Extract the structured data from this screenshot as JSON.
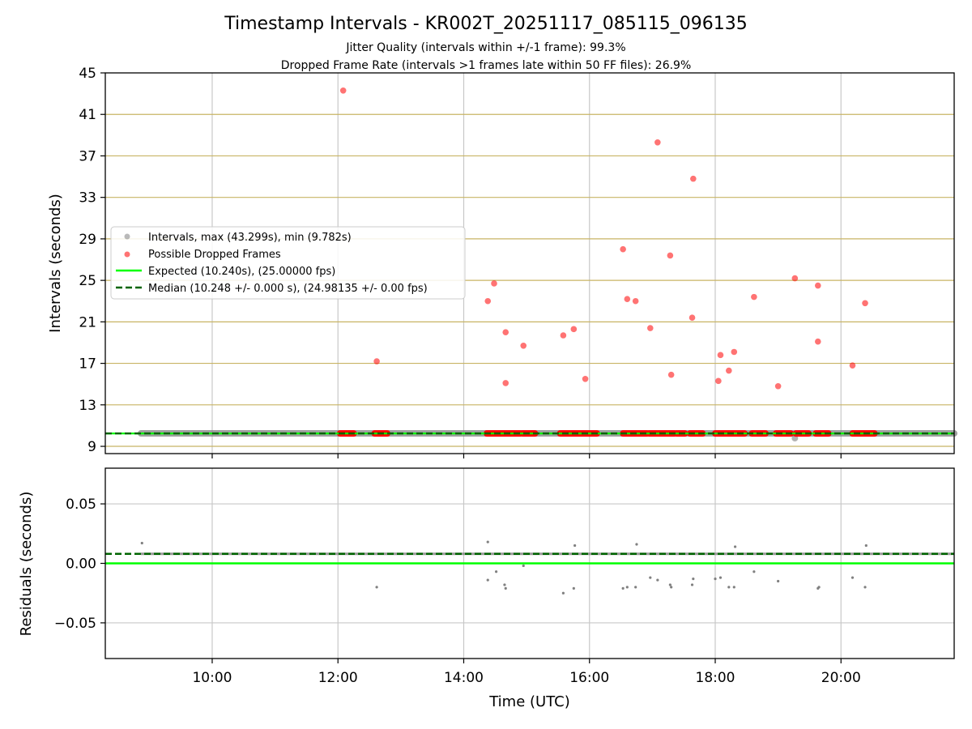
{
  "title": "Timestamp Intervals - KR002T_20251117_085115_096135",
  "subtitle1": "Jitter Quality (intervals within +/-1 frame): 99.3%",
  "subtitle2": "Dropped Frame Rate (intervals >1 frames late within 50 FF files): 26.9%",
  "colors": {
    "intervals": "#808080",
    "dropped": "#ff0000",
    "expected": "#00ff00",
    "median": "#006400",
    "hgrid": "#c8b464",
    "vgrid": "#c8c8c8"
  },
  "chart_data": [
    {
      "type": "scatter",
      "ylabel": "Intervals (seconds)",
      "xlim": [
        "08:18",
        "21:48"
      ],
      "ylim": [
        8.3,
        45
      ],
      "yticks": [
        9,
        13,
        17,
        21,
        25,
        29,
        33,
        37,
        41,
        45
      ],
      "grid": true,
      "legend_position": "center-left",
      "legend": [
        "Intervals, max (43.299s), min (9.782s)",
        "Possible Dropped Frames",
        "Expected (10.240s), (25.00000 fps)",
        "Median (10.248 +/- 0.000 s), (24.98135 +/- 0.00 fps)"
      ],
      "expected_value": 10.24,
      "median_value": 10.248,
      "intervals_range": {
        "from": "08:52",
        "to": "21:48",
        "value": 10.248,
        "min_point": {
          "x": "19:16",
          "y": 9.782
        }
      },
      "dropped_clusters": [
        {
          "from": "12:02",
          "to": "12:15",
          "y": 10.24
        },
        {
          "from": "12:35",
          "to": "12:47",
          "y": 10.24
        },
        {
          "from": "14:22",
          "to": "14:54",
          "y": 10.24
        },
        {
          "from": "14:56",
          "to": "15:08",
          "y": 10.24
        },
        {
          "from": "15:32",
          "to": "16:07",
          "y": 10.24
        },
        {
          "from": "16:32",
          "to": "16:55",
          "y": 10.24
        },
        {
          "from": "16:57",
          "to": "17:21",
          "y": 10.24
        },
        {
          "from": "17:23",
          "to": "17:31",
          "y": 10.24
        },
        {
          "from": "17:36",
          "to": "17:48",
          "y": 10.24
        },
        {
          "from": "18:00",
          "to": "18:28",
          "y": 10.24
        },
        {
          "from": "18:35",
          "to": "18:48",
          "y": 10.24
        },
        {
          "from": "18:58",
          "to": "19:12",
          "y": 10.24
        },
        {
          "from": "19:17",
          "to": "19:29",
          "y": 10.24
        },
        {
          "from": "19:36",
          "to": "19:48",
          "y": 10.24
        },
        {
          "from": "20:11",
          "to": "20:32",
          "y": 10.24
        }
      ],
      "dropped_points": [
        {
          "x": "12:05",
          "y": 43.3
        },
        {
          "x": "12:37",
          "y": 17.2
        },
        {
          "x": "14:23",
          "y": 23.0
        },
        {
          "x": "14:29",
          "y": 24.7
        },
        {
          "x": "14:40",
          "y": 20.0
        },
        {
          "x": "14:40",
          "y": 15.1
        },
        {
          "x": "14:57",
          "y": 18.7
        },
        {
          "x": "15:35",
          "y": 19.7
        },
        {
          "x": "15:45",
          "y": 20.3
        },
        {
          "x": "15:56",
          "y": 15.5
        },
        {
          "x": "16:32",
          "y": 28.0
        },
        {
          "x": "16:36",
          "y": 23.2
        },
        {
          "x": "16:44",
          "y": 23.0
        },
        {
          "x": "16:58",
          "y": 20.4
        },
        {
          "x": "17:05",
          "y": 38.3
        },
        {
          "x": "17:17",
          "y": 27.4
        },
        {
          "x": "17:18",
          "y": 15.9
        },
        {
          "x": "17:38",
          "y": 21.4
        },
        {
          "x": "17:39",
          "y": 34.8
        },
        {
          "x": "18:03",
          "y": 15.3
        },
        {
          "x": "18:05",
          "y": 17.8
        },
        {
          "x": "18:13",
          "y": 16.3
        },
        {
          "x": "18:18",
          "y": 18.1
        },
        {
          "x": "18:37",
          "y": 23.4
        },
        {
          "x": "19:00",
          "y": 14.8
        },
        {
          "x": "19:16",
          "y": 25.2
        },
        {
          "x": "19:38",
          "y": 24.5
        },
        {
          "x": "19:38",
          "y": 19.1
        },
        {
          "x": "20:11",
          "y": 16.8
        },
        {
          "x": "20:23",
          "y": 22.8
        }
      ]
    },
    {
      "type": "scatter",
      "xlabel": "Time (UTC)",
      "ylabel": "Residuals (seconds)",
      "xlim": [
        "08:18",
        "21:48"
      ],
      "ylim": [
        -0.08,
        0.08
      ],
      "yticks": [
        0.05,
        0.0,
        -0.05
      ],
      "ytick_labels": [
        "0.05",
        "0.00",
        "−0.05"
      ],
      "xticks": [
        "10:00",
        "12:00",
        "14:00",
        "16:00",
        "18:00",
        "20:00"
      ],
      "grid": true,
      "expected_residual": 0.0,
      "median_residual": 0.008,
      "residual_band": {
        "from": "08:52",
        "to": "21:48",
        "value": 0.008
      },
      "outliers": [
        {
          "x": "08:53",
          "y": 0.017
        },
        {
          "x": "12:37",
          "y": -0.02
        },
        {
          "x": "14:23",
          "y": 0.018
        },
        {
          "x": "14:23",
          "y": -0.014
        },
        {
          "x": "14:31",
          "y": -0.007
        },
        {
          "x": "14:39",
          "y": -0.018
        },
        {
          "x": "14:40",
          "y": -0.021
        },
        {
          "x": "14:57",
          "y": -0.002
        },
        {
          "x": "15:35",
          "y": -0.025
        },
        {
          "x": "15:45",
          "y": -0.021
        },
        {
          "x": "15:46",
          "y": 0.015
        },
        {
          "x": "16:32",
          "y": -0.021
        },
        {
          "x": "16:36",
          "y": -0.02
        },
        {
          "x": "16:44",
          "y": -0.02
        },
        {
          "x": "16:45",
          "y": 0.016
        },
        {
          "x": "16:58",
          "y": -0.012
        },
        {
          "x": "17:05",
          "y": -0.014
        },
        {
          "x": "17:17",
          "y": -0.018
        },
        {
          "x": "17:18",
          "y": -0.02
        },
        {
          "x": "17:38",
          "y": -0.018
        },
        {
          "x": "17:39",
          "y": -0.013
        },
        {
          "x": "18:00",
          "y": -0.013
        },
        {
          "x": "18:05",
          "y": -0.012
        },
        {
          "x": "18:13",
          "y": -0.02
        },
        {
          "x": "18:18",
          "y": -0.02
        },
        {
          "x": "18:19",
          "y": 0.014
        },
        {
          "x": "18:37",
          "y": -0.007
        },
        {
          "x": "19:00",
          "y": -0.015
        },
        {
          "x": "19:38",
          "y": -0.021
        },
        {
          "x": "19:39",
          "y": -0.02
        },
        {
          "x": "20:11",
          "y": -0.012
        },
        {
          "x": "20:23",
          "y": -0.02
        },
        {
          "x": "20:24",
          "y": 0.015
        }
      ]
    }
  ]
}
